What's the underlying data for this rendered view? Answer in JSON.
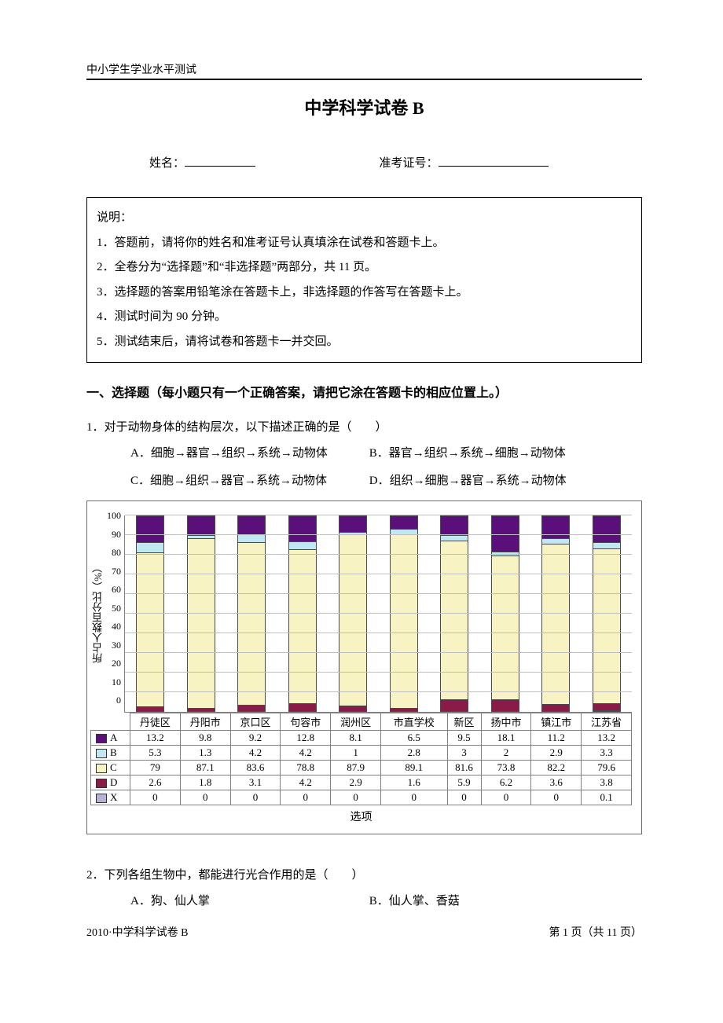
{
  "header": {
    "running": "中小学生学业水平测试",
    "title": "中学科学试卷 B",
    "name_label": "姓名：",
    "ticket_label": "准考证号："
  },
  "instructions": {
    "lead": "说明：",
    "items": [
      "1．答题前，请将你的姓名和准考证号认真填涂在试卷和答题卡上。",
      "2．全卷分为“选择题”和“非选择题”两部分，共 11 页。",
      "3．选择题的答案用铅笔涂在答题卡上，非选择题的作答写在答题卡上。",
      "4．测试时间为 90 分钟。",
      "5．测试结束后，请将试卷和答题卡一并交回。"
    ]
  },
  "section1": {
    "title": "一、选择题（每小题只有一个正确答案，请把它涂在答题卡的相应位置上。）"
  },
  "q1": {
    "stem": "1．对于动物身体的结构层次，以下描述正确的是（　　）",
    "A": "A．细胞→器官→组织→系统→动物体",
    "B": "B．器官→组织→系统→细胞→动物体",
    "C": "C．细胞→组织→器官→系统→动物体",
    "D": "D．组织→细胞→器官→系统→动物体"
  },
  "q2": {
    "stem": "2．下列各组生物中，都能进行光合作用的是（　　）",
    "A": "A．狗、仙人掌",
    "B": "B．仙人掌、香菇"
  },
  "chart": {
    "y_label": "所占人数百分比（%）",
    "y_ticks": [
      "100",
      "90",
      "80",
      "70",
      "60",
      "50",
      "40",
      "30",
      "20",
      "10",
      "0"
    ],
    "categories": [
      "丹徒区",
      "丹阳市",
      "京口区",
      "句容市",
      "润州区",
      "市直学校",
      "新区",
      "扬中市",
      "镇江市",
      "江苏省"
    ],
    "series": [
      "A",
      "B",
      "C",
      "D",
      "X"
    ],
    "colors": {
      "A": "#5a0f7a",
      "B": "#bfe8f2",
      "C": "#f7f3c2",
      "D": "#8a1a47",
      "X": "#b9b0d6"
    },
    "values": {
      "A": [
        "13.2",
        "9.8",
        "9.2",
        "12.8",
        "8.1",
        "6.5",
        "9.5",
        "18.1",
        "11.2",
        "13.2"
      ],
      "B": [
        "5.3",
        "1.3",
        "4.2",
        "4.2",
        "1",
        "2.8",
        "3",
        "2",
        "2.9",
        "3.3"
      ],
      "C": [
        "79",
        "87.1",
        "83.6",
        "78.8",
        "87.9",
        "89.1",
        "81.6",
        "73.8",
        "82.2",
        "79.6"
      ],
      "D": [
        "2.6",
        "1.8",
        "3.1",
        "4.2",
        "2.9",
        "1.6",
        "5.9",
        "6.2",
        "3.6",
        "3.8"
      ],
      "X": [
        "0",
        "0",
        "0",
        "0",
        "0",
        "0",
        "0",
        "0",
        "0",
        "0.1"
      ]
    },
    "caption": "选项"
  },
  "footer": {
    "left": "2010·中学科学试卷 B",
    "right": "第 1 页（共 11 页）"
  }
}
